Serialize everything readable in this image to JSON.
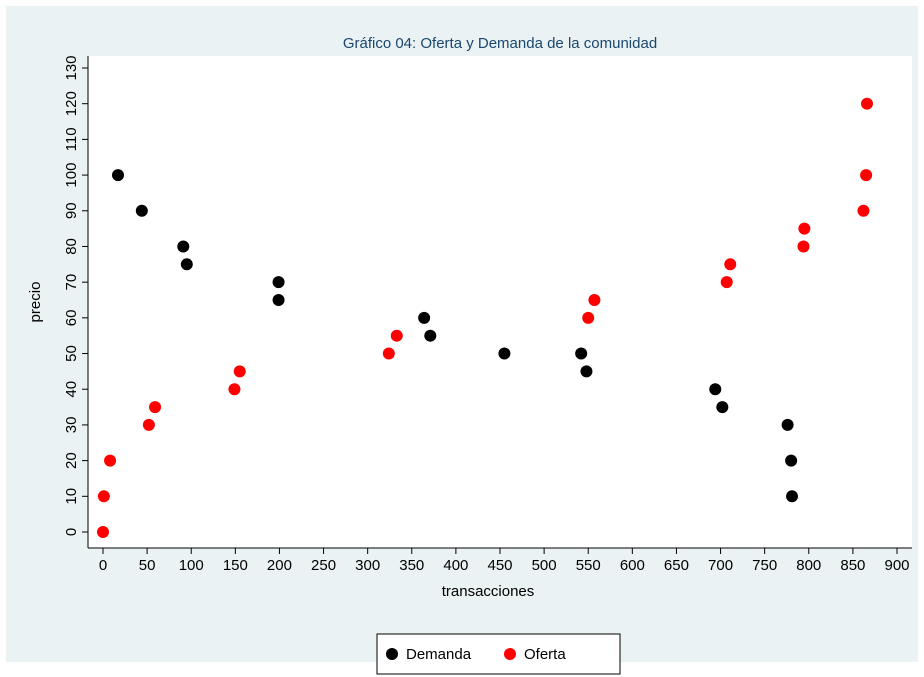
{
  "chart_data": {
    "type": "scatter",
    "title": "Gráfico 04: Oferta y Demanda de la comunidad",
    "xlabel": "transacciones",
    "ylabel": "precio",
    "xlim": [
      0,
      900
    ],
    "xticks": [
      0,
      50,
      100,
      150,
      200,
      250,
      300,
      350,
      400,
      450,
      500,
      550,
      600,
      650,
      700,
      750,
      800,
      850,
      900
    ],
    "ylim": [
      0,
      130
    ],
    "yticks": [
      0,
      10,
      20,
      30,
      40,
      50,
      60,
      70,
      80,
      90,
      100,
      110,
      120,
      130
    ],
    "grid": false,
    "legend": "bottom",
    "series": [
      {
        "name": "Demanda",
        "color": "#000000",
        "x": [
          17,
          44,
          91,
          95,
          199,
          199,
          364,
          371,
          455,
          542,
          548,
          694,
          702,
          776,
          780,
          781
        ],
        "values": [
          100,
          90,
          80,
          75,
          70,
          65,
          60,
          55,
          50,
          50,
          45,
          40,
          35,
          30,
          20,
          10
        ]
      },
      {
        "name": "Oferta",
        "color": "#ff0000",
        "x": [
          0,
          1,
          8,
          52,
          59,
          149,
          155,
          324,
          333,
          550,
          557,
          707,
          711,
          794,
          795,
          862,
          865,
          866
        ],
        "values": [
          0,
          10,
          20,
          30,
          35,
          40,
          45,
          50,
          55,
          60,
          65,
          70,
          75,
          80,
          85,
          90,
          100,
          120
        ]
      }
    ]
  }
}
